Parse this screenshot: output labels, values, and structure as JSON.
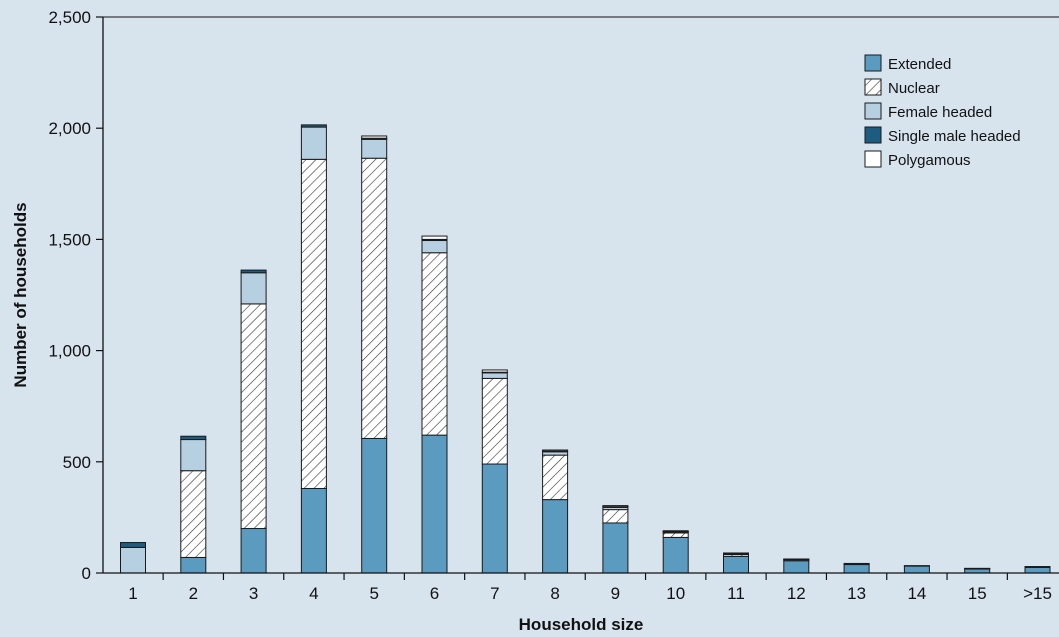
{
  "colors": {
    "background": "#d7e4ee",
    "extended": "#5b9bc0",
    "nuclear_bg": "#ffffff",
    "nuclear_hatch": "#333333",
    "female_headed": "#b6d0e2",
    "single_male_headed": "#1d5b80",
    "polygamous": "#ffffff",
    "axis": "#111111"
  },
  "chart_data": {
    "type": "bar",
    "stacked": true,
    "title": "",
    "xlabel": "Household size",
    "ylabel": "Number of households",
    "ylim": [
      0,
      2500
    ],
    "yticks": [
      0,
      500,
      1000,
      1500,
      2000,
      2500
    ],
    "ytick_labels": [
      "0",
      "500",
      "1,000",
      "1,500",
      "2,000",
      "2,500"
    ],
    "categories": [
      "1",
      "2",
      "3",
      "4",
      "5",
      "6",
      "7",
      "8",
      "9",
      "10",
      "11",
      "12",
      "13",
      "14",
      "15",
      ">15"
    ],
    "legend_position": "top-right",
    "grid": false,
    "series": [
      {
        "name": "Extended",
        "key": "extended",
        "values": [
          0,
          70,
          200,
          380,
          605,
          620,
          490,
          330,
          225,
          160,
          75,
          55,
          38,
          32,
          18,
          25
        ]
      },
      {
        "name": "Nuclear",
        "key": "nuclear",
        "values": [
          0,
          390,
          1010,
          1480,
          1260,
          820,
          385,
          200,
          60,
          20,
          8,
          0,
          0,
          0,
          0,
          0
        ]
      },
      {
        "name": "Female headed",
        "key": "female_headed",
        "values": [
          115,
          140,
          140,
          145,
          85,
          55,
          25,
          15,
          10,
          5,
          3,
          5,
          3,
          0,
          2,
          3
        ]
      },
      {
        "name": "Single male headed",
        "key": "single_male_headed",
        "values": [
          22,
          15,
          12,
          10,
          5,
          5,
          3,
          3,
          3,
          2,
          2,
          2,
          2,
          1,
          1,
          1
        ]
      },
      {
        "name": "Polygamous",
        "key": "polygamous",
        "values": [
          0,
          0,
          0,
          0,
          10,
          15,
          10,
          5,
          5,
          3,
          2,
          1,
          0,
          0,
          0,
          0
        ]
      }
    ]
  }
}
